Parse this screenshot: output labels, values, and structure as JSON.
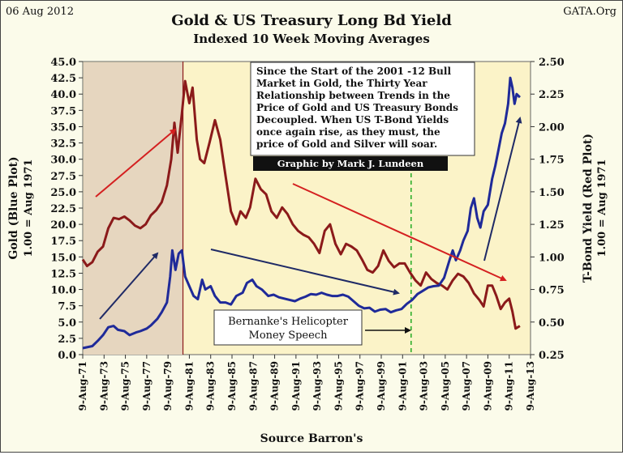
{
  "header": {
    "date": "06 Aug 2012",
    "source_site": "GATA.Org",
    "title": "Gold & US Treasury Long Bd Yield",
    "subtitle": "Indexed 10 Week Moving Averages"
  },
  "annotations": {
    "box_lines": [
      "Since the Start of the 2001  -12 Bull",
      "Market in Gold, the Thirty Year",
      "Relationship between Trends in the",
      "Price of Gold and US Treasury Bonds",
      "Decoupled.  When US T-Bond Yields",
      "once again rise, as they must, the",
      "price of Gold and Silver will soar."
    ],
    "credit": "Graphic by Mark J. Lundeen",
    "speech_lines": [
      "Bernanke's Helicopter",
      "Money Speech"
    ],
    "footer": "Source Barron's"
  },
  "colors": {
    "gold": "#1f2a99",
    "yield": "#8b1a1a",
    "arrow_red": "#d42020",
    "arrow_navy": "#1f2a66",
    "shade": "#e6d6bf",
    "plot_bg": "#fbf3c8",
    "marker": "#22aa22"
  },
  "chart_data": {
    "type": "line",
    "title": "Gold & US Treasury Long Bd Yield",
    "subtitle": "Indexed 10 Week Moving Averages",
    "xlabel": "Source Barron's",
    "ylabel": "Gold (Blue Plot)",
    "ylabel_sub": "1.00 = Aug 1971",
    "y2label": "T-Bond Yield (Red Plot)",
    "y2label_sub": "1.00 = Aug 1971",
    "xlim": [
      1971.6,
      2013.6
    ],
    "ylim": [
      0,
      45
    ],
    "y2lim": [
      0.25,
      2.5
    ],
    "y_ticks": [
      "0.0",
      "2.5",
      "5.0",
      "7.5",
      "10.0",
      "12.5",
      "15.0",
      "17.5",
      "20.0",
      "22.5",
      "25.0",
      "27.5",
      "30.0",
      "32.5",
      "35.0",
      "37.5",
      "40.0",
      "42.5",
      "45.0"
    ],
    "y2_ticks": [
      "0.25",
      "0.50",
      "0.75",
      "1.00",
      "1.25",
      "1.50",
      "1.75",
      "2.00",
      "2.25",
      "2.50"
    ],
    "x_tick_labels": [
      "9-Aug-71",
      "9-Aug-73",
      "9-Aug-75",
      "9-Aug-77",
      "9-Aug-79",
      "9-Aug-81",
      "9-Aug-83",
      "9-Aug-85",
      "9-Aug-87",
      "9-Aug-89",
      "9-Aug-91",
      "9-Aug-93",
      "9-Aug-95",
      "9-Aug-97",
      "9-Aug-99",
      "9-Aug-01",
      "9-Aug-03",
      "9-Aug-05",
      "9-Aug-07",
      "9-Aug-09",
      "9-Aug-11",
      "9-Aug-13"
    ],
    "x_ticks": [
      1971.6,
      1973.6,
      1975.6,
      1977.6,
      1979.6,
      1981.6,
      1983.6,
      1985.6,
      1987.6,
      1989.6,
      1991.6,
      1993.6,
      1995.6,
      1997.6,
      1999.6,
      2001.6,
      2003.6,
      2005.6,
      2007.6,
      2009.6,
      2011.6,
      2013.6
    ],
    "shaded_region": [
      1971.6,
      1981.0
    ],
    "marker_line_x": 2002.4,
    "series": [
      {
        "name": "Gold (Blue Plot)",
        "axis": "left",
        "x": [
          1971.6,
          1972.5,
          1973.0,
          1973.5,
          1974.0,
          1974.5,
          1974.9,
          1975.5,
          1976.0,
          1976.6,
          1977.0,
          1977.6,
          1978.0,
          1978.6,
          1979.0,
          1979.5,
          1979.8,
          1980.0,
          1980.3,
          1980.6,
          1980.9,
          1981.2,
          1981.6,
          1982.0,
          1982.4,
          1982.8,
          1983.1,
          1983.6,
          1984.0,
          1984.5,
          1985.0,
          1985.5,
          1986.0,
          1986.6,
          1987.0,
          1987.5,
          1987.9,
          1988.4,
          1989.0,
          1989.5,
          1990.0,
          1990.5,
          1991.0,
          1991.5,
          1992.0,
          1992.5,
          1993.0,
          1993.5,
          1994.0,
          1994.5,
          1995.0,
          1995.5,
          1996.0,
          1996.5,
          1997.0,
          1997.5,
          1998.0,
          1998.5,
          1999.0,
          1999.5,
          2000.0,
          2000.5,
          2001.0,
          2001.5,
          2002.0,
          2002.5,
          2003.0,
          2003.5,
          2004.0,
          2004.5,
          2005.0,
          2005.5,
          2006.0,
          2006.3,
          2006.6,
          2007.0,
          2007.3,
          2007.7,
          2008.0,
          2008.3,
          2008.6,
          2008.9,
          2009.2,
          2009.6,
          2010.0,
          2010.3,
          2010.6,
          2010.9,
          2011.2,
          2011.5,
          2011.7,
          2011.9,
          2012.1,
          2012.3,
          2012.6
        ],
        "values": [
          1.0,
          1.3,
          2.1,
          3.0,
          4.2,
          4.4,
          3.8,
          3.6,
          3.0,
          3.4,
          3.6,
          4.0,
          4.5,
          5.5,
          6.5,
          8.0,
          12.0,
          16.0,
          13.0,
          15.5,
          16.0,
          12.0,
          10.5,
          9.0,
          8.5,
          11.5,
          10.0,
          10.5,
          9.0,
          8.0,
          8.0,
          7.7,
          9.0,
          9.5,
          11.0,
          11.5,
          10.5,
          10.0,
          9.0,
          9.2,
          8.8,
          8.6,
          8.4,
          8.2,
          8.6,
          8.9,
          9.3,
          9.2,
          9.5,
          9.2,
          9.0,
          9.0,
          9.2,
          8.9,
          8.2,
          7.5,
          7.1,
          7.2,
          6.6,
          6.9,
          7.0,
          6.5,
          6.8,
          7.0,
          7.8,
          8.4,
          9.3,
          9.8,
          10.3,
          10.5,
          10.6,
          11.8,
          14.5,
          16.0,
          14.5,
          16.0,
          17.5,
          19.0,
          22.5,
          24.0,
          21.0,
          19.5,
          22.0,
          23.0,
          27.0,
          29.0,
          31.5,
          34.0,
          35.5,
          38.5,
          42.5,
          41.0,
          38.5,
          40.0,
          39.5
        ]
      },
      {
        "name": "T-Bond Yield (Red Plot)",
        "axis": "right",
        "x": [
          1971.6,
          1972.0,
          1972.5,
          1973.0,
          1973.5,
          1974.0,
          1974.5,
          1975.0,
          1975.5,
          1976.0,
          1976.5,
          1977.0,
          1977.5,
          1978.0,
          1978.5,
          1979.0,
          1979.5,
          1979.9,
          1980.2,
          1980.5,
          1980.9,
          1981.2,
          1981.6,
          1981.9,
          1982.3,
          1982.6,
          1983.0,
          1983.5,
          1984.0,
          1984.5,
          1985.0,
          1985.5,
          1986.0,
          1986.4,
          1986.9,
          1987.3,
          1987.8,
          1988.3,
          1988.8,
          1989.3,
          1989.8,
          1990.3,
          1990.8,
          1991.3,
          1991.8,
          1992.3,
          1992.8,
          1993.3,
          1993.8,
          1994.3,
          1994.8,
          1995.3,
          1995.8,
          1996.3,
          1996.8,
          1997.3,
          1997.8,
          1998.3,
          1998.8,
          1999.3,
          1999.8,
          2000.3,
          2000.8,
          2001.3,
          2001.8,
          2002.3,
          2002.8,
          2003.3,
          2003.8,
          2004.3,
          2004.8,
          2005.3,
          2005.8,
          2006.3,
          2006.8,
          2007.3,
          2007.8,
          2008.3,
          2008.8,
          2009.2,
          2009.6,
          2010.0,
          2010.4,
          2010.8,
          2011.2,
          2011.6,
          2011.9,
          2012.2,
          2012.6
        ],
        "values": [
          0.98,
          0.93,
          0.96,
          1.04,
          1.08,
          1.22,
          1.3,
          1.29,
          1.31,
          1.28,
          1.24,
          1.22,
          1.25,
          1.32,
          1.36,
          1.42,
          1.55,
          1.75,
          2.03,
          1.8,
          2.1,
          2.35,
          2.18,
          2.3,
          1.9,
          1.75,
          1.72,
          1.88,
          2.05,
          1.9,
          1.62,
          1.35,
          1.25,
          1.35,
          1.3,
          1.38,
          1.6,
          1.52,
          1.48,
          1.35,
          1.3,
          1.38,
          1.33,
          1.25,
          1.2,
          1.17,
          1.15,
          1.1,
          1.03,
          1.2,
          1.25,
          1.1,
          1.02,
          1.1,
          1.08,
          1.05,
          0.98,
          0.9,
          0.88,
          0.93,
          1.05,
          0.97,
          0.92,
          0.95,
          0.95,
          0.88,
          0.82,
          0.78,
          0.88,
          0.83,
          0.8,
          0.78,
          0.75,
          0.82,
          0.87,
          0.85,
          0.8,
          0.72,
          0.67,
          0.62,
          0.78,
          0.78,
          0.7,
          0.6,
          0.65,
          0.68,
          0.58,
          0.45,
          0.47
        ]
      }
    ]
  }
}
